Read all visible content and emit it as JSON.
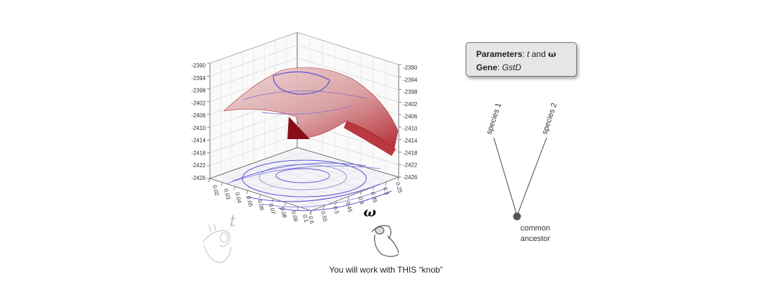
{
  "parameters_box": {
    "parameters_label": "Parameters",
    "param_t": "t",
    "and_word": "and",
    "param_omega": "ω",
    "gene_label": "Gene",
    "gene_value": "GstD"
  },
  "caption": "You will work with THIS “knob”",
  "tree": {
    "leaves": [
      "species 1",
      "species 2"
    ],
    "root_label_line1": "common",
    "root_label_line2": "ancestor"
  },
  "chart_data": {
    "type": "surface3d",
    "z_ticks": [
      "-2390",
      "-2394",
      "-2398",
      "-2402",
      "-2406",
      "-2410",
      "-2414",
      "-2418",
      "-2422",
      "-2426"
    ],
    "t_ticks": [
      "0.02",
      "0.03",
      "0.04",
      "0.05",
      "0.06",
      "0.07",
      "0.08",
      "0.09",
      "0.1"
    ],
    "omega_ticks": [
      "0.25",
      "0.3",
      "0.35",
      "0.4",
      "0.45",
      "0.5",
      "0.55",
      "0.6"
    ],
    "xlabel": "t",
    "ylabel": "ω",
    "zlim": [
      -2426,
      -2390
    ],
    "surface_color": "#c0282d",
    "contour_color": "#5a4fd6"
  },
  "colors": {
    "surface": "#c0282d",
    "contour": "#5a4fd6",
    "grid": "#bdbdbd"
  },
  "icons": [
    "hand-knob-t-icon",
    "hand-knob-omega-icon"
  ]
}
